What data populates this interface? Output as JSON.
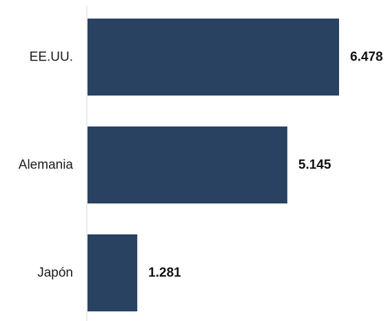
{
  "chart_data": {
    "type": "bar",
    "orientation": "horizontal",
    "categories": [
      "EE.UU.",
      "Alemania",
      "Japón"
    ],
    "values": [
      6.478,
      5.145,
      1.281
    ],
    "value_labels": [
      "6.478",
      "5.145",
      "1.281"
    ],
    "title": "",
    "xlabel": "",
    "ylabel": "",
    "xlim": [
      0,
      6.478
    ],
    "grid": false,
    "legend": "none",
    "bar_color": "#2a4262",
    "axis_color": "#d9d9d9"
  }
}
